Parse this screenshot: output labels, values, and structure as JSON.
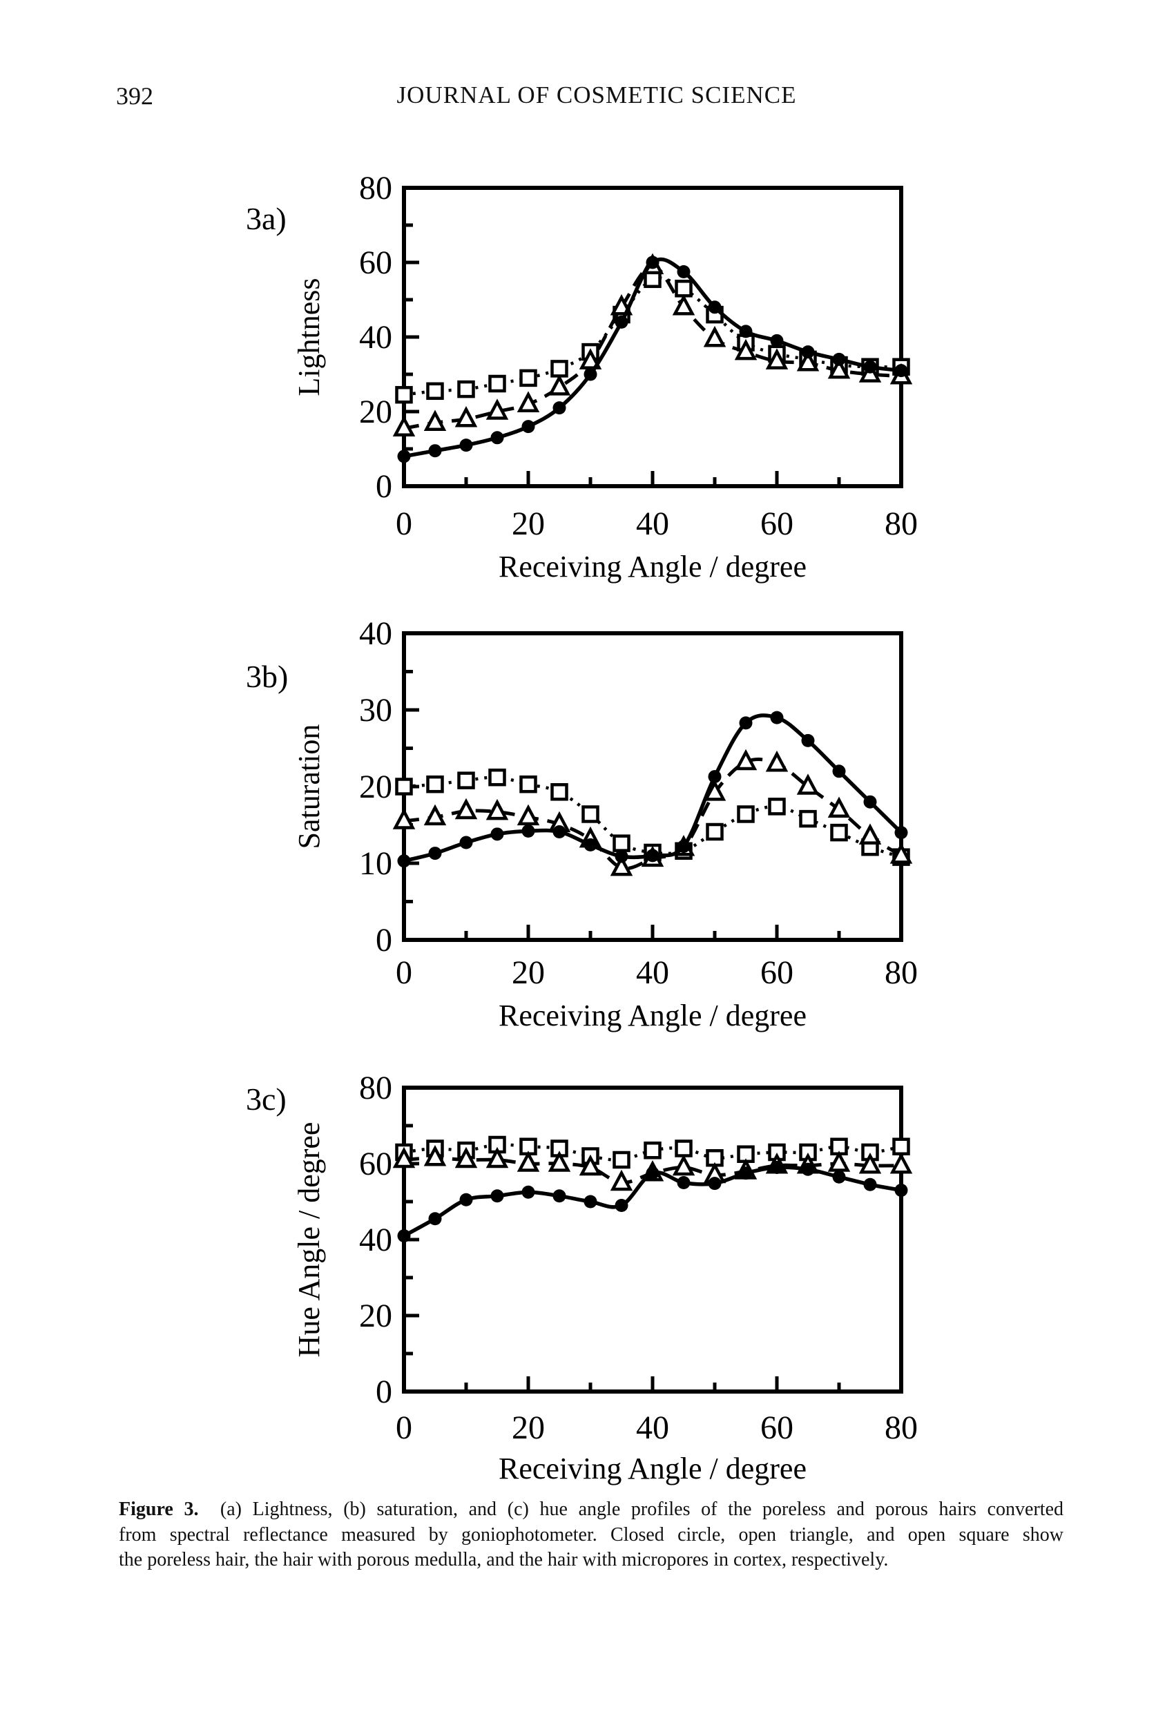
{
  "header": {
    "page_number": "392",
    "journal_title": "JOURNAL OF COSMETIC SCIENCE"
  },
  "figure_caption": {
    "label": "Figure 3.",
    "lines": [
      "(a) Lightness, (b) saturation, and (c) hue angle profiles of the poreless and porous hairs converted",
      "from spectral reflectance measured by goniophotometer. Closed circle, open triangle, and open square show",
      "the poreless hair, the hair with porous medulla, and the hair with micropores in cortex, respectively."
    ]
  },
  "chart_data": [
    {
      "id": "3a",
      "panel_label": "3a)",
      "type": "line",
      "title": "",
      "xlabel": "Receiving Angle / degree",
      "ylabel": "Lightness",
      "xlim": [
        0,
        80
      ],
      "ylim": [
        0,
        80
      ],
      "xticks": [
        0,
        20,
        40,
        60,
        80
      ],
      "yticks": [
        0,
        20,
        40,
        60,
        80
      ],
      "grid": false,
      "legend_position": "none",
      "x": [
        0,
        5,
        10,
        15,
        20,
        25,
        30,
        35,
        40,
        45,
        50,
        55,
        60,
        65,
        70,
        75,
        80
      ],
      "series": [
        {
          "name": "poreless-hair",
          "label": "poreless hair (closed circle)",
          "marker": "closed-circle",
          "line": "solid",
          "values": [
            8,
            9.5,
            11,
            13,
            16,
            21,
            30,
            44,
            60,
            57.5,
            48,
            41.5,
            39,
            36,
            34,
            32,
            31
          ]
        },
        {
          "name": "hair-with-porous-medulla",
          "label": "hair with porous medulla (open triangle)",
          "marker": "open-triangle",
          "line": "dashed",
          "values": [
            15.5,
            17,
            18,
            20,
            22,
            26.5,
            33.5,
            48,
            59,
            48,
            39.5,
            36,
            33.5,
            33,
            31,
            30,
            29.5
          ]
        },
        {
          "name": "hair-with-micropores-in-cortex",
          "label": "hair with micropores in cortex (open square)",
          "marker": "open-square",
          "line": "dotted",
          "values": [
            24.5,
            25.5,
            26,
            27.5,
            29,
            31.5,
            36,
            46,
            55.5,
            53,
            46,
            38.5,
            35.5,
            34,
            32.5,
            32,
            32
          ]
        }
      ]
    },
    {
      "id": "3b",
      "panel_label": "3b)",
      "type": "line",
      "title": "",
      "xlabel": "Receiving Angle / degree",
      "ylabel": "Saturation",
      "xlim": [
        0,
        80
      ],
      "ylim": [
        0,
        40
      ],
      "xticks": [
        0,
        20,
        40,
        60,
        80
      ],
      "yticks": [
        0,
        10,
        20,
        30,
        40
      ],
      "grid": false,
      "legend_position": "none",
      "x": [
        0,
        5,
        10,
        15,
        20,
        25,
        30,
        35,
        40,
        45,
        50,
        55,
        60,
        65,
        70,
        75,
        80
      ],
      "series": [
        {
          "name": "poreless-hair",
          "label": "poreless hair (closed circle)",
          "marker": "closed-circle",
          "line": "solid",
          "values": [
            10.3,
            11.3,
            12.7,
            13.8,
            14.2,
            14.1,
            12.4,
            10.9,
            11,
            12.2,
            21.3,
            28.3,
            29,
            26,
            22,
            18,
            14
          ]
        },
        {
          "name": "hair-with-porous-medulla",
          "label": "hair with porous medulla (open triangle)",
          "marker": "open-triangle",
          "line": "dashed",
          "values": [
            15.5,
            16,
            16.8,
            16.7,
            16,
            15.1,
            13.1,
            9.4,
            10.6,
            12,
            19.2,
            23.2,
            23,
            20,
            17,
            13.5,
            11
          ]
        },
        {
          "name": "hair-with-micropores-in-cortex",
          "label": "hair with micropores in cortex (open square)",
          "marker": "open-square",
          "line": "dotted",
          "values": [
            20,
            20.3,
            20.8,
            21.2,
            20.3,
            19.3,
            16.4,
            12.6,
            11.4,
            11.6,
            14.1,
            16.4,
            17.4,
            15.8,
            14,
            12.1,
            10.8
          ]
        }
      ]
    },
    {
      "id": "3c",
      "panel_label": "3c)",
      "type": "line",
      "title": "",
      "xlabel": "Receiving Angle / degree",
      "ylabel": "Hue Angle / degree",
      "xlim": [
        0,
        80
      ],
      "ylim": [
        0,
        80
      ],
      "xticks": [
        0,
        20,
        40,
        60,
        80
      ],
      "yticks": [
        0,
        20,
        40,
        60,
        80
      ],
      "grid": false,
      "legend_position": "none",
      "x": [
        0,
        5,
        10,
        15,
        20,
        25,
        30,
        35,
        40,
        45,
        50,
        55,
        60,
        65,
        70,
        75,
        80
      ],
      "series": [
        {
          "name": "poreless-hair",
          "label": "poreless hair (closed circle)",
          "marker": "closed-circle",
          "line": "solid",
          "values": [
            41,
            45.5,
            50.5,
            51.5,
            52.5,
            51.5,
            50,
            49,
            57.5,
            55,
            54.8,
            57.5,
            59,
            58.5,
            56.5,
            54.5,
            53
          ]
        },
        {
          "name": "hair-with-porous-medulla",
          "label": "hair with porous medulla (open triangle)",
          "marker": "open-triangle",
          "line": "dashed",
          "values": [
            61,
            61.5,
            61,
            61,
            60,
            60,
            59,
            55,
            57.5,
            59,
            57,
            58,
            59.5,
            59.5,
            60,
            59.5,
            59.5
          ]
        },
        {
          "name": "hair-with-micropores-in-cortex",
          "label": "hair with micropores in cortex (open square)",
          "marker": "open-square",
          "line": "dotted",
          "values": [
            63,
            64,
            63.5,
            65,
            64.5,
            64,
            62,
            61,
            63.5,
            64,
            61.5,
            62.5,
            63,
            63,
            64.5,
            63,
            64.5
          ]
        }
      ]
    }
  ]
}
